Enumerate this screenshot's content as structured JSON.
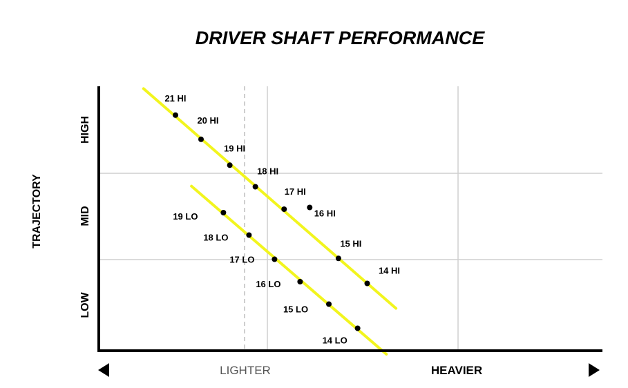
{
  "chart_data": {
    "type": "scatter",
    "title": "DRIVER SHAFT PERFORMANCE",
    "ylabel": "TRAJECTORY",
    "y_bands": [
      "LOW",
      "MID",
      "HIGH"
    ],
    "x_labels": {
      "left": "LIGHTER",
      "right": "HEAVIER"
    },
    "trendline_color": "#f2f51e",
    "series": [
      {
        "points": [
          {
            "label": "21 HI",
            "x": 1.2,
            "y": 2.73
          },
          {
            "label": "20 HI",
            "x": 1.6,
            "y": 2.45
          },
          {
            "label": "19 HI",
            "x": 2.05,
            "y": 2.15
          },
          {
            "label": "18 HI",
            "x": 2.45,
            "y": 1.9
          },
          {
            "label": "17 HI",
            "x": 2.9,
            "y": 1.64
          },
          {
            "label": "16 HI",
            "x": 3.3,
            "y": 1.66
          },
          {
            "label": "15 HI",
            "x": 3.75,
            "y": 1.07
          },
          {
            "label": "14 HI",
            "x": 4.2,
            "y": 0.78
          }
        ]
      },
      {
        "points": [
          {
            "label": "19 LO",
            "x": 1.95,
            "y": 1.6
          },
          {
            "label": "18 LO",
            "x": 2.35,
            "y": 1.34
          },
          {
            "label": "17 LO",
            "x": 2.75,
            "y": 1.06
          },
          {
            "label": "16 LO",
            "x": 3.15,
            "y": 0.8
          },
          {
            "label": "15 LO",
            "x": 3.6,
            "y": 0.54
          },
          {
            "label": "14 LO",
            "x": 4.05,
            "y": 0.26
          }
        ]
      }
    ]
  }
}
